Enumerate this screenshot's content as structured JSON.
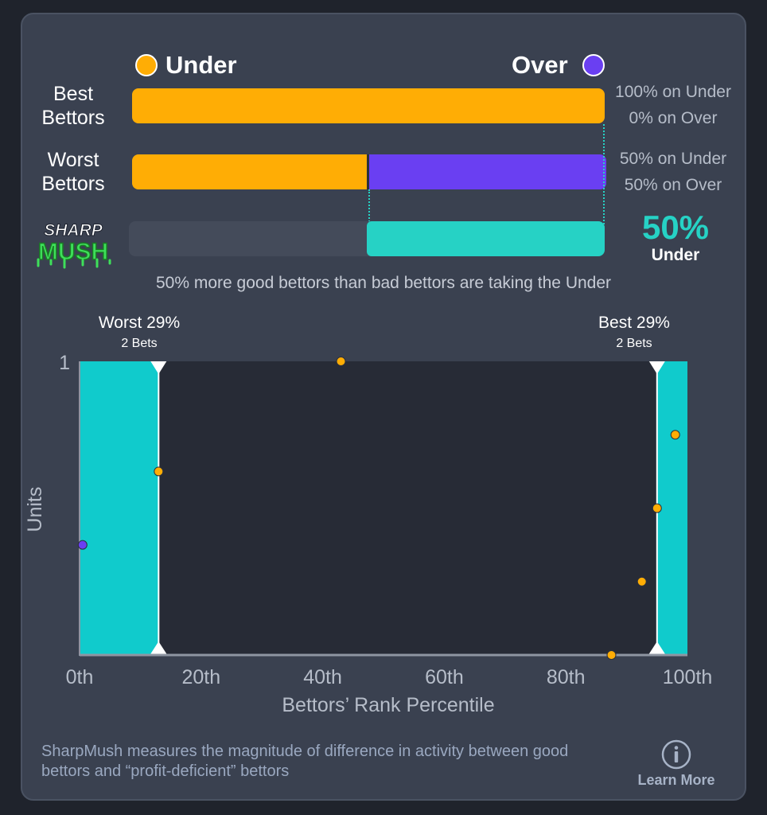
{
  "legend": {
    "under_label": "Under",
    "over_label": "Over"
  },
  "colors": {
    "under": "#ffad05",
    "over": "#6a3ff2",
    "sharp": "#26d2c5",
    "chart_zone": "#10cbcc",
    "card": "#3a4150",
    "track": "#444b5a"
  },
  "rows": [
    {
      "label": "Best Bettors",
      "under_pct": 100,
      "over_pct": 0,
      "line1": "100% on Under",
      "line2": "0% on Over"
    },
    {
      "label": "Worst Bettors",
      "under_pct": 50,
      "over_pct": 50,
      "line1": "50% on Under",
      "line2": "50% on Over"
    }
  ],
  "sharpmush": {
    "logo_top": "SHARP",
    "logo_bottom": "MUSH",
    "value_pct": 50,
    "value_text": "50%",
    "value_side": "Under"
  },
  "summary": "50% more good bettors than bad bettors are taking the Under",
  "markers": {
    "worst": {
      "title": "Worst 29%",
      "sub": "2 Bets"
    },
    "best": {
      "title": "Best 29%",
      "sub": "2 Bets"
    }
  },
  "chart_data": {
    "type": "scatter",
    "xlabel": "Bettors’ Rank Percentile",
    "ylabel": "Units",
    "x_ticks": [
      "0th",
      "20th",
      "40th",
      "60th",
      "80th",
      "100th"
    ],
    "y_tick_label": "1",
    "xlim": [
      0,
      100
    ],
    "ylim": [
      0,
      1
    ],
    "highlight_ranges": [
      [
        0,
        13
      ],
      [
        95,
        100
      ]
    ],
    "marker_lines": [
      13,
      95
    ],
    "points": [
      {
        "x": 43,
        "y": 1.0,
        "side": "under"
      },
      {
        "x": 13,
        "y": 0.625,
        "side": "under"
      },
      {
        "x": 98,
        "y": 0.75,
        "side": "under"
      },
      {
        "x": 95,
        "y": 0.5,
        "side": "under"
      },
      {
        "x": 92.5,
        "y": 0.25,
        "side": "under"
      },
      {
        "x": 87.5,
        "y": 0.0,
        "side": "under"
      },
      {
        "x": 0.5,
        "y": 0.375,
        "side": "over"
      }
    ]
  },
  "footer": {
    "description": "SharpMush measures the magnitude of difference in activity between good bettors and “profit-deficient” bettors",
    "learn_more": "Learn More"
  }
}
